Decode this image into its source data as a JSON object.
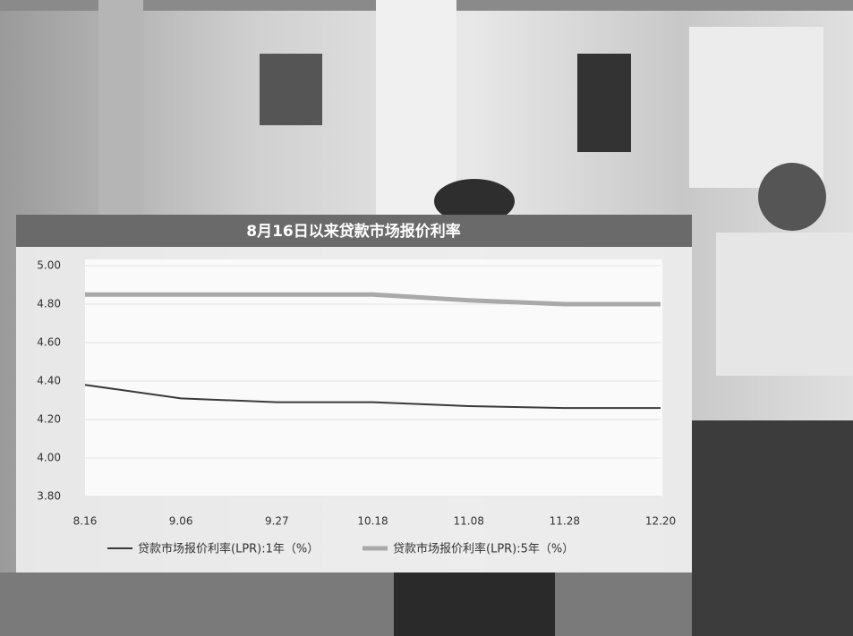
{
  "chart_data": {
    "type": "line",
    "title": "8月16日以来贷款市场报价利率",
    "categories": [
      "8.16",
      "9.06",
      "9.27",
      "10.18",
      "11.08",
      "11.28",
      "12.20"
    ],
    "series": [
      {
        "name": "贷款市场报价利率(LPR):1年（%）",
        "color": "#3a3a3a",
        "values": [
          4.38,
          4.31,
          4.29,
          4.29,
          4.27,
          4.26,
          4.26
        ]
      },
      {
        "name": "贷款市场报价利率(LPR):5年（%）",
        "color": "#a9a9a9",
        "values": [
          4.85,
          4.85,
          4.85,
          4.85,
          4.82,
          4.8,
          4.8
        ]
      }
    ],
    "ylim": [
      3.8,
      5.0
    ],
    "yticks": [
      {
        "value": 3.8,
        "label": "3.80"
      },
      {
        "value": 4.0,
        "label": "4.00"
      },
      {
        "value": 4.2,
        "label": "4.20"
      },
      {
        "value": 4.4,
        "label": "4.40"
      },
      {
        "value": 4.6,
        "label": "4.60"
      },
      {
        "value": 4.8,
        "label": "4.80"
      },
      {
        "value": 5.0,
        "label": "5.00"
      }
    ],
    "grid": true,
    "legend": "bottom"
  }
}
